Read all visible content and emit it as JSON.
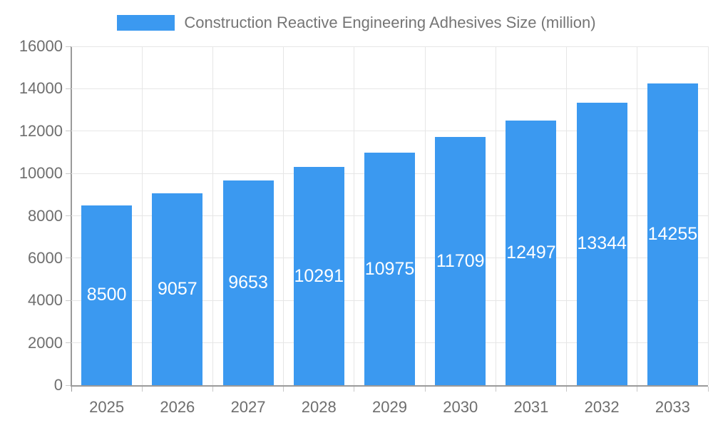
{
  "chart_data": {
    "type": "bar",
    "title": "Construction Reactive Engineering Adhesives Size (million)",
    "categories": [
      "2025",
      "2026",
      "2027",
      "2028",
      "2029",
      "2030",
      "2031",
      "2032",
      "2033"
    ],
    "values": [
      8500,
      9057,
      9653,
      10291,
      10975,
      11709,
      12497,
      13344,
      14255
    ],
    "xlabel": "",
    "ylabel": "",
    "ylim": [
      0,
      16000
    ],
    "yticks": [
      0,
      2000,
      4000,
      6000,
      8000,
      10000,
      12000,
      14000,
      16000
    ],
    "grid": true,
    "legend_position": "top",
    "bar_value_labels_visible": true
  },
  "colors": {
    "bar": "#3B99F0",
    "bar_label": "#FFFFFF",
    "grid": "#E6E6E6",
    "axis_line": "#9A9A9A",
    "tick_mark": "#C9C9C9",
    "tick_label": "#6E6E6E",
    "legend_text": "#757575",
    "background": "#FFFFFF"
  }
}
